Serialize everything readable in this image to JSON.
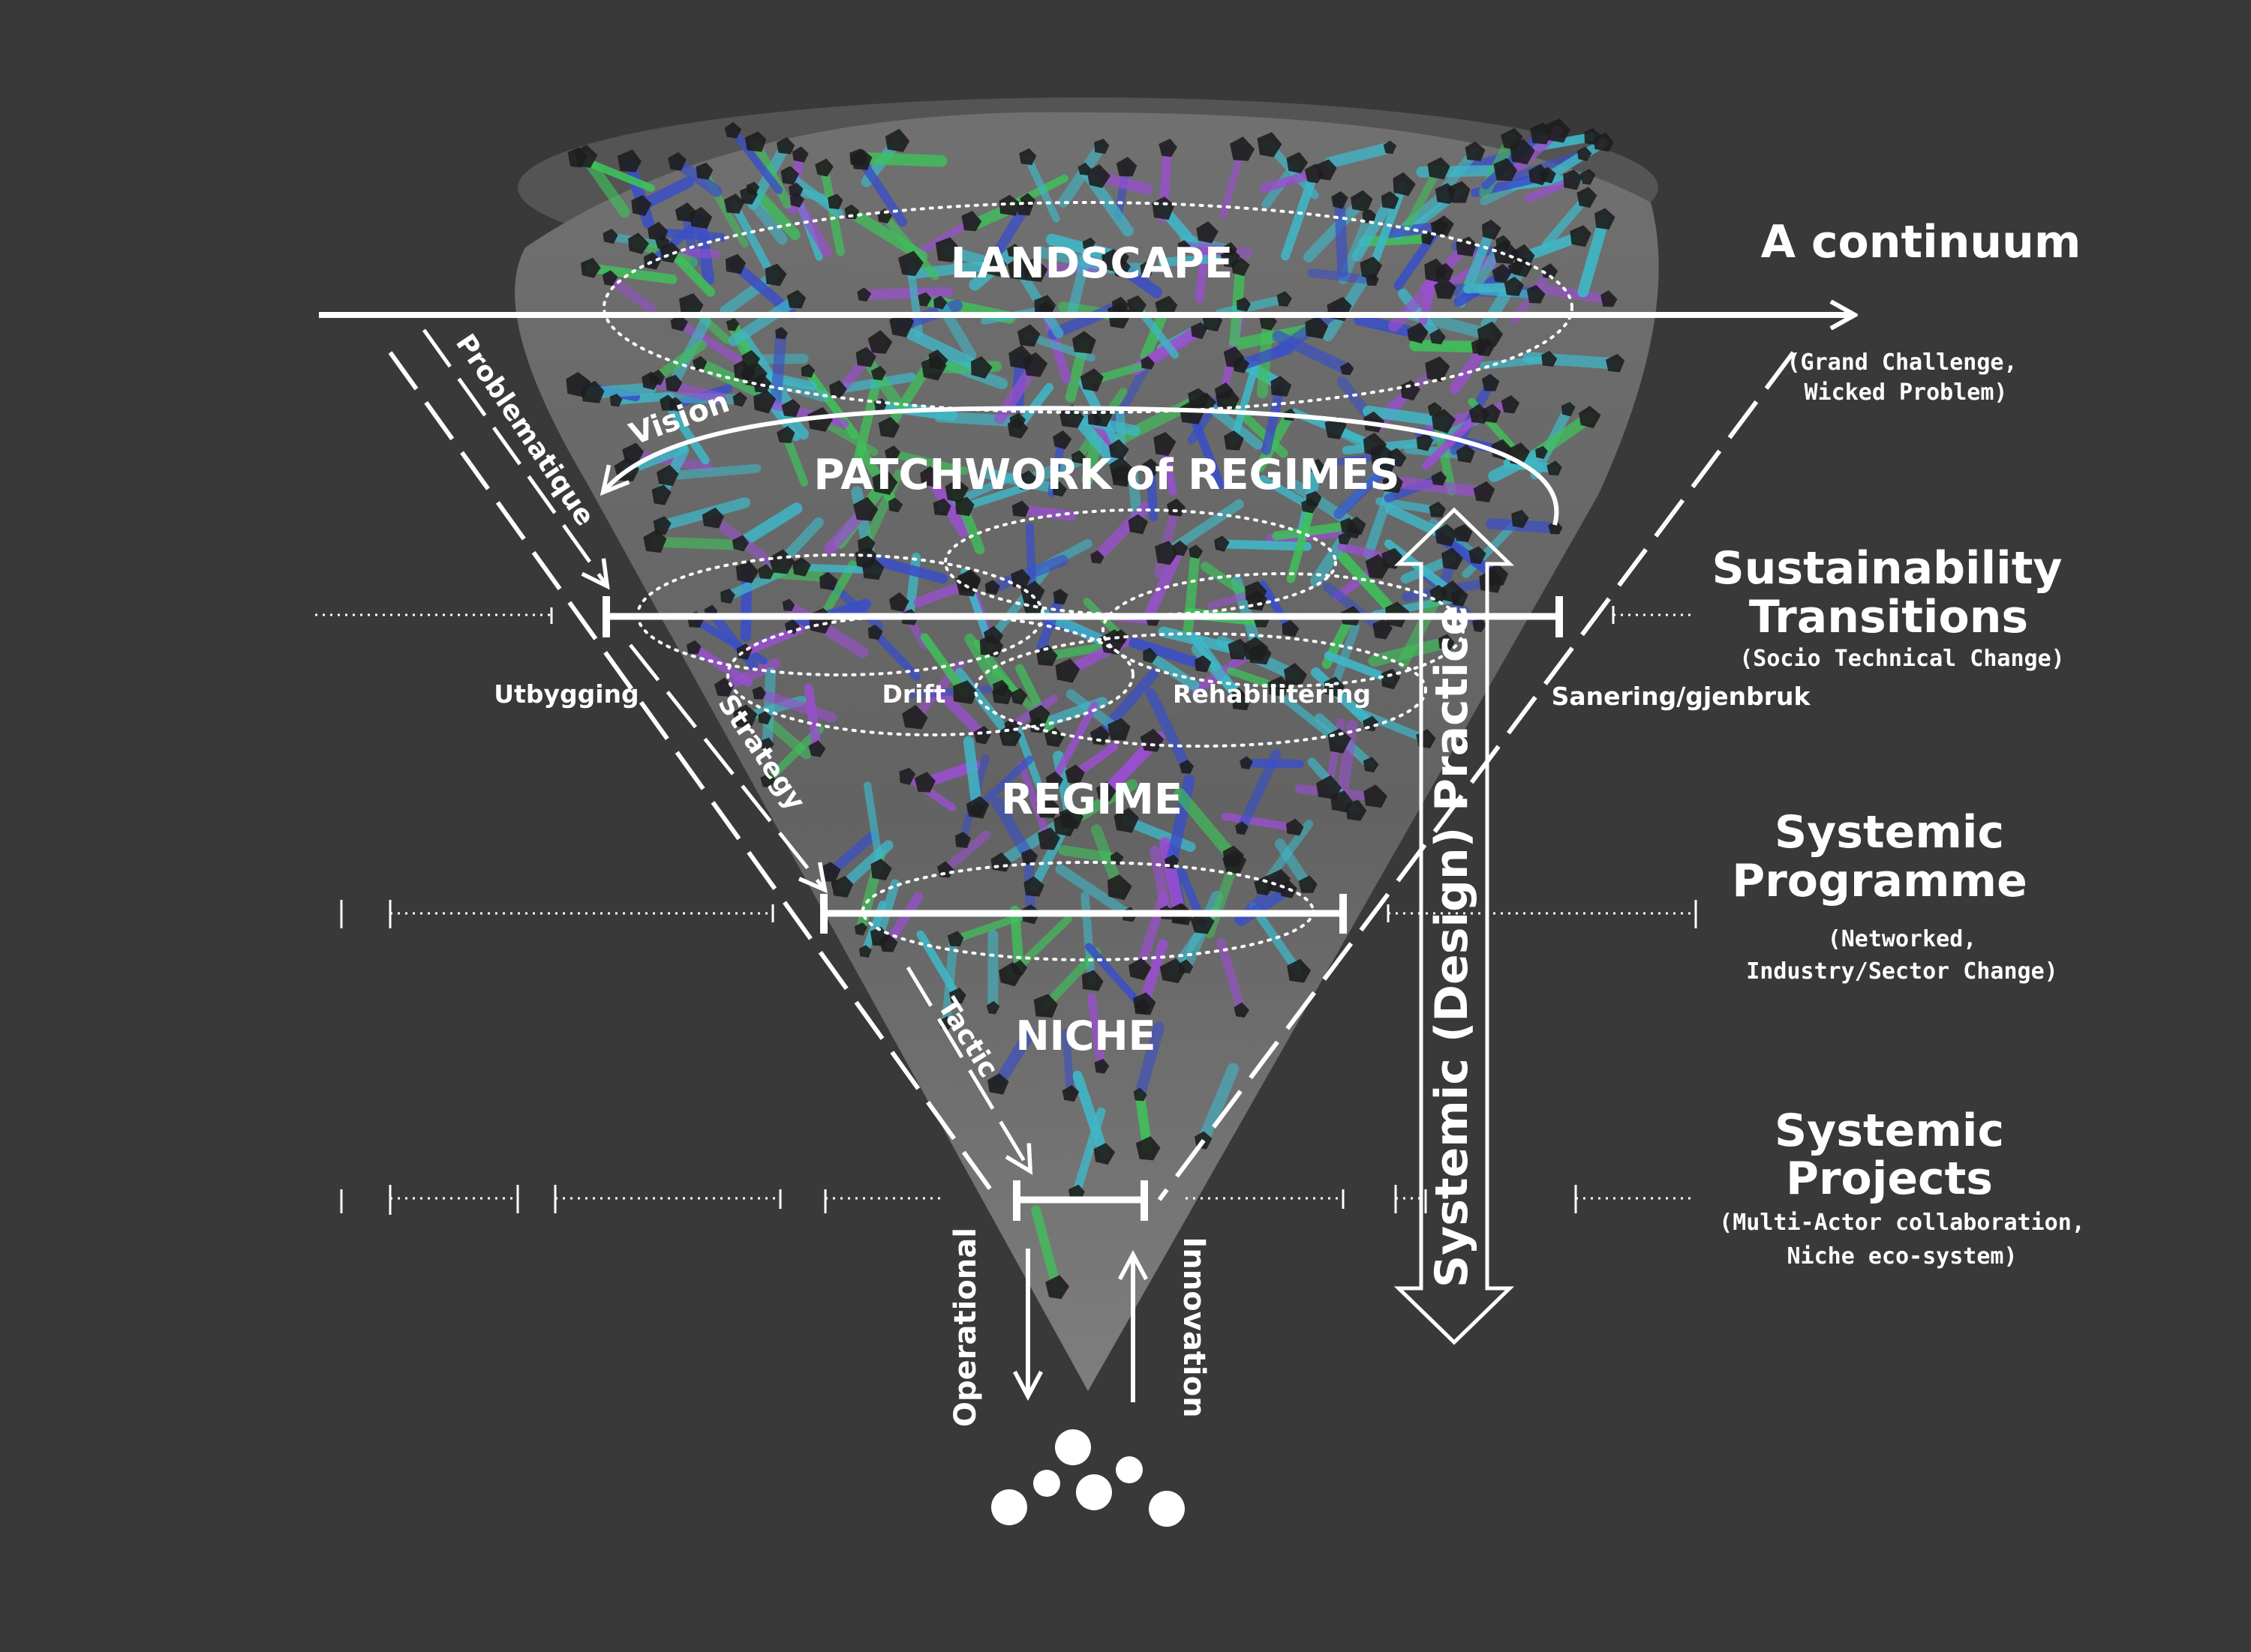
{
  "levels": {
    "landscape": "LANDSCAPE",
    "patchwork": "PATCHWORK of REGIMES",
    "regime": "REGIME",
    "niche": "NICHE"
  },
  "regime_labels": {
    "utbygging": "Utbygging",
    "drift": "Drift",
    "rehabilitering": "Rehabilitering",
    "sanering": "Sanering/gjenbruk"
  },
  "arrows": {
    "vision": "Vision",
    "problematique": "Problematique",
    "strategy": "Strategy",
    "tactic": "Tactic",
    "operational": "Operational",
    "innovation": "Innovation",
    "practice": "Systemic (Design) Practice"
  },
  "right_labels": {
    "continuum_title": "A continuum",
    "continuum_sub_1": "(Grand Challenge,",
    "continuum_sub_2": "Wicked Problem)",
    "transitions_title_1": "Sustainability",
    "transitions_title_2": "Transitions",
    "transitions_sub": "(Socio Technical Change)",
    "programme_title_1": "Systemic",
    "programme_title_2": "Programme",
    "programme_sub_1": "(Networked,",
    "programme_sub_2": "Industry/Sector Change)",
    "projects_title_1": "Systemic",
    "projects_title_2": "Projects",
    "projects_sub_1": "(Multi-Actor collaboration,",
    "projects_sub_2": "Niche eco-system)"
  },
  "colors": {
    "background": "#393939",
    "cone": "#6a6a6a",
    "network_green": "#3fc25a",
    "network_cyan": "#3fb8c8",
    "network_purple": "#9a4fd0",
    "network_blue": "#3a4fc8",
    "node": "#1e1e1e",
    "line": "#ffffff"
  }
}
